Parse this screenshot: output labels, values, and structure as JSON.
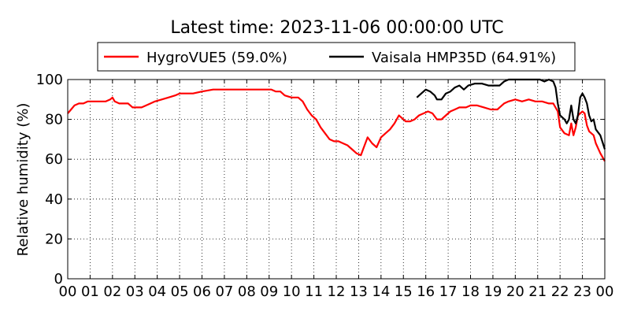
{
  "chart_data": {
    "type": "line",
    "title": "Latest time: 2023-11-06 00:00:00 UTC",
    "xlabel": "",
    "ylabel": "Relative humidity (%)",
    "xlim": [
      0,
      24
    ],
    "ylim": [
      0,
      100
    ],
    "grid": true,
    "legend_position": "top",
    "x_tick_labels": [
      "00",
      "01",
      "02",
      "03",
      "04",
      "05",
      "06",
      "07",
      "08",
      "09",
      "10",
      "11",
      "12",
      "13",
      "14",
      "15",
      "16",
      "17",
      "18",
      "19",
      "20",
      "21",
      "22",
      "23",
      "00"
    ],
    "y_ticks": [
      0,
      20,
      40,
      60,
      80,
      100
    ],
    "series": [
      {
        "name": "HygroVUE5 (59.0%)",
        "color": "#ff0000",
        "points": [
          [
            0.0,
            83
          ],
          [
            0.15,
            85
          ],
          [
            0.3,
            87
          ],
          [
            0.5,
            88
          ],
          [
            0.7,
            88
          ],
          [
            0.9,
            89
          ],
          [
            1.2,
            89
          ],
          [
            1.5,
            89
          ],
          [
            1.7,
            89
          ],
          [
            1.9,
            90
          ],
          [
            2.0,
            91
          ],
          [
            2.1,
            89
          ],
          [
            2.3,
            88
          ],
          [
            2.5,
            88
          ],
          [
            2.7,
            88
          ],
          [
            2.9,
            86
          ],
          [
            3.1,
            86
          ],
          [
            3.3,
            86
          ],
          [
            3.5,
            87
          ],
          [
            3.7,
            88
          ],
          [
            3.9,
            89
          ],
          [
            4.2,
            90
          ],
          [
            4.5,
            91
          ],
          [
            4.8,
            92
          ],
          [
            5.0,
            93
          ],
          [
            5.3,
            93
          ],
          [
            5.6,
            93
          ],
          [
            6.0,
            94
          ],
          [
            6.5,
            95
          ],
          [
            7.0,
            95
          ],
          [
            7.5,
            95
          ],
          [
            8.0,
            95
          ],
          [
            8.5,
            95
          ],
          [
            8.9,
            95
          ],
          [
            9.1,
            95
          ],
          [
            9.3,
            94
          ],
          [
            9.5,
            94
          ],
          [
            9.7,
            92
          ],
          [
            10.0,
            91
          ],
          [
            10.3,
            91
          ],
          [
            10.5,
            89
          ],
          [
            10.7,
            85
          ],
          [
            10.9,
            82
          ],
          [
            11.1,
            80
          ],
          [
            11.3,
            76
          ],
          [
            11.5,
            73
          ],
          [
            11.7,
            70
          ],
          [
            11.9,
            69
          ],
          [
            12.1,
            69
          ],
          [
            12.3,
            68
          ],
          [
            12.5,
            67
          ],
          [
            12.7,
            65
          ],
          [
            12.9,
            63
          ],
          [
            13.1,
            62
          ],
          [
            13.2,
            65
          ],
          [
            13.4,
            71
          ],
          [
            13.6,
            68
          ],
          [
            13.8,
            66
          ],
          [
            14.0,
            71
          ],
          [
            14.2,
            73
          ],
          [
            14.4,
            75
          ],
          [
            14.6,
            78
          ],
          [
            14.8,
            82
          ],
          [
            14.9,
            81
          ],
          [
            15.1,
            79
          ],
          [
            15.3,
            79
          ],
          [
            15.5,
            80
          ],
          [
            15.7,
            82
          ],
          [
            15.9,
            83
          ],
          [
            16.1,
            84
          ],
          [
            16.3,
            83
          ],
          [
            16.5,
            80
          ],
          [
            16.7,
            80
          ],
          [
            16.9,
            82
          ],
          [
            17.1,
            84
          ],
          [
            17.3,
            85
          ],
          [
            17.5,
            86
          ],
          [
            17.8,
            86
          ],
          [
            18.0,
            87
          ],
          [
            18.3,
            87
          ],
          [
            18.6,
            86
          ],
          [
            18.9,
            85
          ],
          [
            19.2,
            85
          ],
          [
            19.5,
            88
          ],
          [
            19.7,
            89
          ],
          [
            20.0,
            90
          ],
          [
            20.3,
            89
          ],
          [
            20.6,
            90
          ],
          [
            20.9,
            89
          ],
          [
            21.2,
            89
          ],
          [
            21.5,
            88
          ],
          [
            21.7,
            88
          ],
          [
            21.9,
            84
          ],
          [
            22.0,
            76
          ],
          [
            22.2,
            73
          ],
          [
            22.4,
            72
          ],
          [
            22.5,
            78
          ],
          [
            22.6,
            72
          ],
          [
            22.7,
            76
          ],
          [
            22.8,
            82
          ],
          [
            23.0,
            84
          ],
          [
            23.1,
            83
          ],
          [
            23.2,
            77
          ],
          [
            23.3,
            74
          ],
          [
            23.5,
            72
          ],
          [
            23.6,
            68
          ],
          [
            23.8,
            63
          ],
          [
            24.0,
            59
          ]
        ]
      },
      {
        "name": "Vaisala HMP35D (64.91%)",
        "color": "#000000",
        "points": [
          [
            15.6,
            91
          ],
          [
            15.8,
            93
          ],
          [
            16.0,
            95
          ],
          [
            16.2,
            94
          ],
          [
            16.4,
            92
          ],
          [
            16.5,
            90
          ],
          [
            16.7,
            90
          ],
          [
            16.9,
            93
          ],
          [
            17.1,
            94
          ],
          [
            17.3,
            96
          ],
          [
            17.5,
            97
          ],
          [
            17.7,
            95
          ],
          [
            17.9,
            97
          ],
          [
            18.2,
            98
          ],
          [
            18.5,
            98
          ],
          [
            18.8,
            97
          ],
          [
            19.1,
            97
          ],
          [
            19.3,
            97
          ],
          [
            19.5,
            99
          ],
          [
            19.7,
            100
          ],
          [
            20.0,
            100
          ],
          [
            20.3,
            100
          ],
          [
            20.6,
            100
          ],
          [
            20.9,
            100
          ],
          [
            21.1,
            100
          ],
          [
            21.3,
            99
          ],
          [
            21.5,
            100
          ],
          [
            21.7,
            99
          ],
          [
            21.8,
            96
          ],
          [
            21.9,
            88
          ],
          [
            22.0,
            82
          ],
          [
            22.2,
            80
          ],
          [
            22.3,
            78
          ],
          [
            22.4,
            80
          ],
          [
            22.5,
            87
          ],
          [
            22.6,
            80
          ],
          [
            22.7,
            78
          ],
          [
            22.8,
            82
          ],
          [
            22.9,
            91
          ],
          [
            23.0,
            93
          ],
          [
            23.1,
            91
          ],
          [
            23.2,
            88
          ],
          [
            23.3,
            82
          ],
          [
            23.4,
            79
          ],
          [
            23.5,
            80
          ],
          [
            23.6,
            75
          ],
          [
            23.8,
            72
          ],
          [
            24.0,
            65
          ]
        ]
      }
    ]
  }
}
